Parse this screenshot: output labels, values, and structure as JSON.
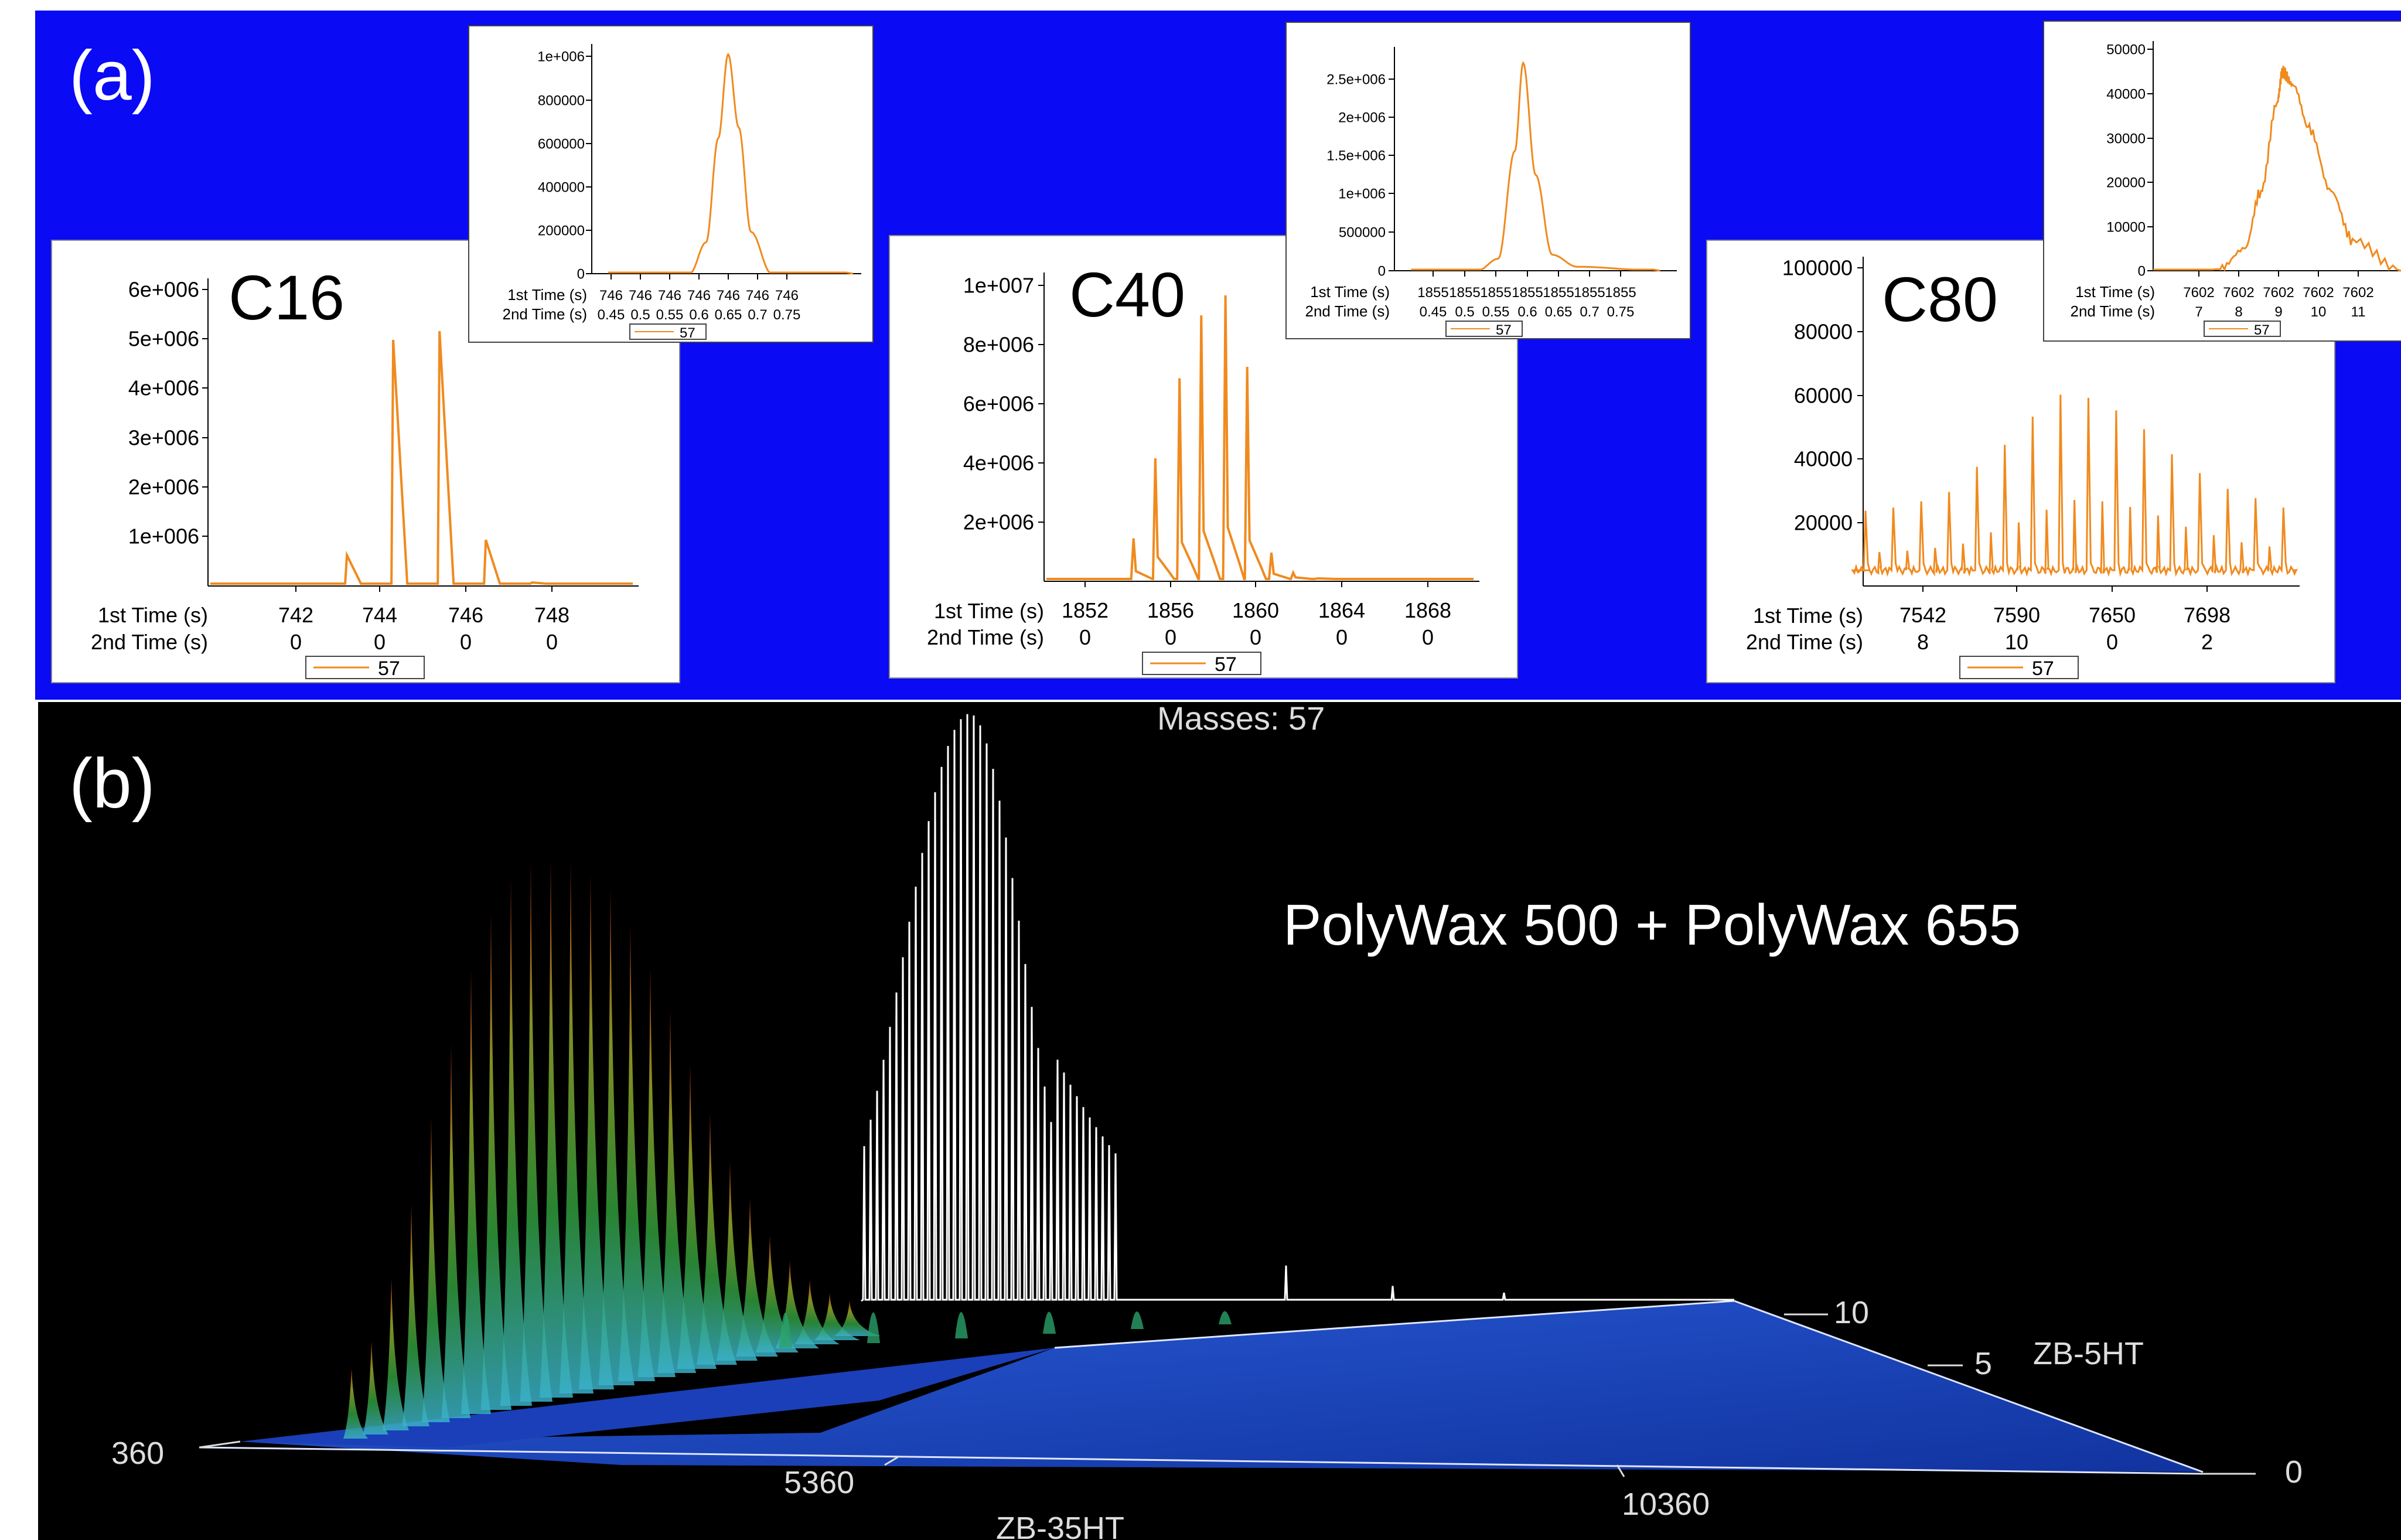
{
  "panel_a": {
    "label": "(a)",
    "charts": [
      {
        "id": "c16",
        "label": "C16",
        "main": {
          "yticks": [
            "6e+006",
            "5e+006",
            "4e+006",
            "3e+006",
            "2e+006",
            "1e+006"
          ],
          "ytick_values": [
            6000000,
            5000000,
            4000000,
            3000000,
            2000000,
            1000000
          ],
          "xticks_1st": [
            "742",
            "744",
            "746",
            "748"
          ],
          "xticks_2nd": [
            "0",
            "0",
            "0",
            "0"
          ],
          "xlabel_1st": "1st Time (s)",
          "xlabel_2nd": "2nd Time (s)",
          "legend": "57"
        },
        "inset": {
          "yticks": [
            "1e+006",
            "800000",
            "600000",
            "400000",
            "200000",
            "0"
          ],
          "xticks_1st": [
            "746",
            "746",
            "746",
            "746",
            "746",
            "746",
            "746"
          ],
          "xticks_2nd": [
            "0.45",
            "0.5",
            "0.55",
            "0.6",
            "0.65",
            "0.7",
            "0.75"
          ],
          "xlabel_1st": "1st Time (s)",
          "xlabel_2nd": "2nd Time (s)",
          "legend": "57"
        }
      },
      {
        "id": "c40",
        "label": "C40",
        "main": {
          "yticks": [
            "1e+007",
            "8e+006",
            "6e+006",
            "4e+006",
            "2e+006"
          ],
          "ytick_values": [
            10000000,
            8000000,
            6000000,
            4000000,
            2000000
          ],
          "xticks_1st": [
            "1852",
            "1856",
            "1860",
            "1864",
            "1868"
          ],
          "xticks_2nd": [
            "0",
            "0",
            "0",
            "0",
            "0"
          ],
          "xlabel_1st": "1st Time (s)",
          "xlabel_2nd": "2nd Time (s)",
          "legend": "57"
        },
        "inset": {
          "yticks": [
            "2.5e+006",
            "2e+006",
            "1.5e+006",
            "1e+006",
            "500000",
            "0"
          ],
          "xticks_1st": [
            "1855",
            "1855",
            "1855",
            "1855",
            "1855",
            "1855",
            "1855"
          ],
          "xticks_2nd": [
            "0.45",
            "0.5",
            "0.55",
            "0.6",
            "0.65",
            "0.7",
            "0.75"
          ],
          "xlabel_1st": "1st Time (s)",
          "xlabel_2nd": "2nd Time (s)",
          "legend": "57"
        }
      },
      {
        "id": "c80",
        "label": "C80",
        "main": {
          "yticks": [
            "100000",
            "80000",
            "60000",
            "40000",
            "20000"
          ],
          "ytick_values": [
            100000,
            80000,
            60000,
            40000,
            20000
          ],
          "xticks_1st": [
            "7542",
            "7590",
            "7650",
            "7698"
          ],
          "xticks_2nd": [
            "8",
            "10",
            "0",
            "2"
          ],
          "xlabel_1st": "1st Time (s)",
          "xlabel_2nd": "2nd Time (s)",
          "legend": "57"
        },
        "inset": {
          "yticks": [
            "50000",
            "40000",
            "30000",
            "20000",
            "10000",
            "0"
          ],
          "xticks_1st": [
            "7602",
            "7602",
            "7602",
            "7602",
            "7602"
          ],
          "xticks_2nd": [
            "7",
            "8",
            "9",
            "10",
            "11"
          ],
          "xlabel_1st": "1st Time (s)",
          "xlabel_2nd": "2nd Time (s)",
          "legend": "57"
        }
      }
    ]
  },
  "panel_b": {
    "label": "(b)",
    "masses": "Masses:  57",
    "title": "PolyWax 500 + PolyWax 655",
    "x_axis_name": "ZB-35HT",
    "x_ticks": [
      "360",
      "5360",
      "10360"
    ],
    "y_axis_name": "ZB-5HT",
    "y_ticks": [
      "10",
      "5",
      "0"
    ]
  },
  "colors": {
    "panel_a_background": "#0a0af5",
    "panel_b_background": "#000000",
    "trace": "#f08a1e",
    "surface": "#1846c8"
  },
  "chart_data": [
    {
      "type": "line",
      "title": "C16",
      "series": [
        {
          "name": "57",
          "x": [
            743.6,
            744.6,
            745.6,
            746.6,
            747.6
          ],
          "values": [
            700000,
            5600000,
            5800000,
            1050000,
            80000
          ]
        }
      ],
      "xlabel": "1st Time (s)",
      "xlim": [
        740.6,
        749.9
      ],
      "ylim": [
        0,
        7000000
      ]
    },
    {
      "type": "line",
      "title": "C16 inset",
      "series": [
        {
          "name": "57",
          "x": [
            0.45,
            0.55,
            0.57,
            0.585,
            0.597,
            0.61,
            0.625,
            0.65,
            0.75
          ],
          "values": [
            0,
            0,
            150000,
            650000,
            1050000,
            700000,
            200000,
            0,
            0
          ]
        }
      ],
      "xlabel": "2nd Time (s)",
      "xlim": [
        0.43,
        0.76
      ],
      "ylim": [
        0,
        1100000
      ]
    },
    {
      "type": "line",
      "title": "C40",
      "series": [
        {
          "name": "57",
          "x": [
            1855.7,
            1856.6,
            1857.6,
            1858.5,
            1859.5,
            1860.4,
            1861.4,
            1862.3,
            1863.3
          ],
          "values": [
            1500000,
            4300000,
            7100000,
            9300000,
            10000000,
            7500000,
            1000000,
            300000,
            100000
          ]
        }
      ],
      "xlabel": "1st Time (s)",
      "xlim": [
        1852.0,
        1870.0
      ],
      "ylim": [
        0,
        10800000
      ]
    },
    {
      "type": "line",
      "title": "C40 inset",
      "series": [
        {
          "name": "57",
          "x": [
            0.45,
            0.53,
            0.555,
            0.575,
            0.585,
            0.6,
            0.62,
            0.65,
            0.75
          ],
          "values": [
            0,
            0,
            150000,
            1500000,
            2600000,
            1200000,
            200000,
            50000,
            0
          ]
        }
      ],
      "xlabel": "2nd Time (s)",
      "xlim": [
        0.43,
        0.77
      ],
      "ylim": [
        0,
        2800000
      ]
    },
    {
      "type": "line",
      "title": "C80",
      "series": [
        {
          "name": "57",
          "x": [
            7531,
            7543,
            7555,
            7567,
            7579,
            7591,
            7603,
            7615,
            7627,
            7639,
            7651,
            7663,
            7675,
            7687,
            7699,
            7711
          ],
          "values": [
            24000,
            25000,
            27000,
            30000,
            38000,
            45000,
            54000,
            61000,
            60000,
            56000,
            50000,
            42000,
            36000,
            31000,
            28000,
            25000
          ]
        }
      ],
      "xlabel": "1st Time (s)",
      "xlim": [
        7530,
        7718
      ],
      "ylim": [
        0,
        105000
      ]
    },
    {
      "type": "line",
      "title": "C80 inset",
      "series": [
        {
          "name": "57",
          "x": [
            6.6,
            7.8,
            8.3,
            8.6,
            8.9,
            9.0,
            9.2,
            9.5,
            9.9,
            10.3,
            11.2
          ],
          "values": [
            0,
            0,
            5000,
            18000,
            38000,
            45000,
            42000,
            32000,
            18000,
            7000,
            0
          ]
        }
      ],
      "xlabel": "2nd Time (s)",
      "xlim": [
        6.6,
        11.2
      ],
      "ylim": [
        0,
        52000
      ]
    }
  ]
}
